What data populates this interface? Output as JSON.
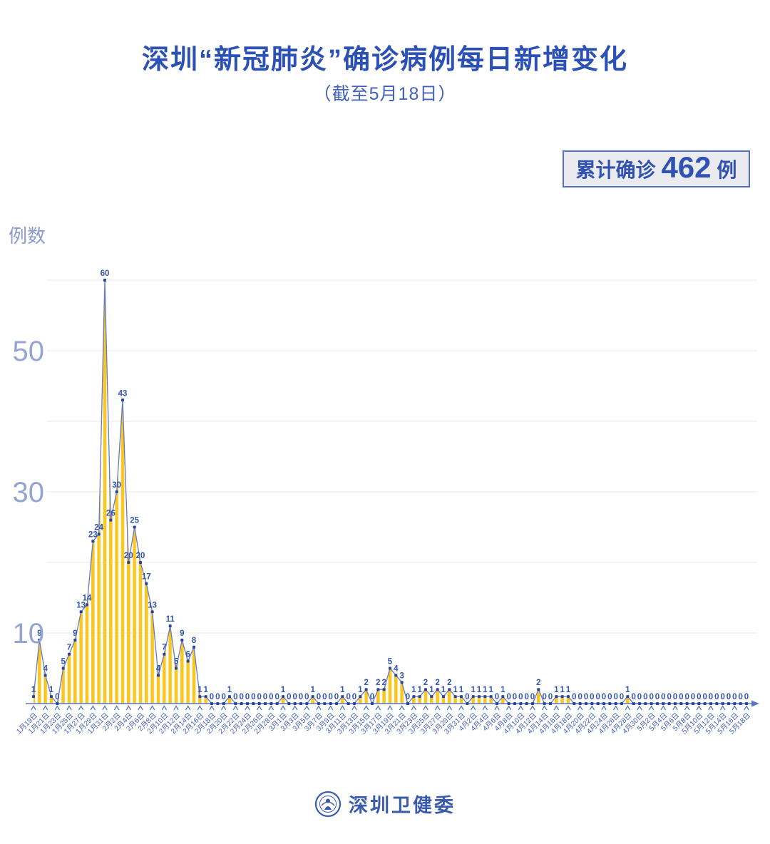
{
  "page": {
    "title": "深圳“新冠肺炎”确诊病例每日新增变化",
    "subtitle": "（截至5月18日）"
  },
  "badge": {
    "prefix": "累计确诊",
    "value": "462",
    "suffix": "例"
  },
  "footer": {
    "org_name": "深圳卫健委"
  },
  "chart_data": {
    "type": "area",
    "title": "深圳“新冠肺炎”确诊病例每日新增变化",
    "subtitle": "（截至5月18日）",
    "ylabel": "例数",
    "xlabel": "",
    "ylim": [
      0,
      60
    ],
    "yticks_labeled": [
      10,
      30,
      50
    ],
    "gridlines": [
      10,
      20,
      30,
      40,
      50,
      60
    ],
    "x_label_every": 2,
    "legend": "none",
    "grid": "on",
    "x": [
      "1月19日",
      "1月20日",
      "1月21日",
      "1月22日",
      "1月23日",
      "1月24日",
      "1月25日",
      "1月26日",
      "1月27日",
      "1月28日",
      "1月29日",
      "1月30日",
      "1月31日",
      "2月1日",
      "2月2日",
      "2月3日",
      "2月4日",
      "2月5日",
      "2月6日",
      "2月7日",
      "2月8日",
      "2月9日",
      "2月10日",
      "2月11日",
      "2月12日",
      "2月13日",
      "2月14日",
      "2月15日",
      "2月16日",
      "2月17日",
      "2月18日",
      "2月19日",
      "2月20日",
      "2月21日",
      "2月22日",
      "2月23日",
      "2月24日",
      "2月25日",
      "2月26日",
      "2月27日",
      "2月28日",
      "2月29日",
      "3月1日",
      "3月2日",
      "3月3日",
      "3月4日",
      "3月5日",
      "3月6日",
      "3月7日",
      "3月8日",
      "3月9日",
      "3月10日",
      "3月11日",
      "3月12日",
      "3月13日",
      "3月14日",
      "3月15日",
      "3月16日",
      "3月17日",
      "3月18日",
      "3月19日",
      "3月20日",
      "3月21日",
      "3月22日",
      "3月23日",
      "3月24日",
      "3月25日",
      "3月26日",
      "3月27日",
      "3月28日",
      "3月29日",
      "3月30日",
      "3月31日",
      "4月1日",
      "4月2日",
      "4月3日",
      "4月4日",
      "4月5日",
      "4月6日",
      "4月7日",
      "4月8日",
      "4月9日",
      "4月10日",
      "4月11日",
      "4月12日",
      "4月13日",
      "4月14日",
      "4月15日",
      "4月16日",
      "4月17日",
      "4月18日",
      "4月19日",
      "4月20日",
      "4月21日",
      "4月22日",
      "4月23日",
      "4月24日",
      "4月25日",
      "4月26日",
      "4月27日",
      "4月28日",
      "4月29日",
      "4月30日",
      "5月1日",
      "5月2日",
      "5月3日",
      "5月4日",
      "5月5日",
      "5月6日",
      "5月7日",
      "5月8日",
      "5月9日",
      "5月10日",
      "5月11日",
      "5月12日",
      "5月13日",
      "5月14日",
      "5月15日",
      "5月16日",
      "5月17日",
      "5月18日"
    ],
    "values": [
      1,
      9,
      4,
      1,
      0,
      5,
      7,
      9,
      13,
      14,
      23,
      24,
      60,
      26,
      30,
      43,
      20,
      25,
      20,
      17,
      13,
      4,
      7,
      11,
      5,
      9,
      6,
      8,
      1,
      1,
      0,
      0,
      0,
      1,
      0,
      0,
      0,
      0,
      0,
      0,
      0,
      0,
      1,
      0,
      0,
      0,
      0,
      1,
      0,
      0,
      0,
      0,
      1,
      0,
      0,
      1,
      2,
      0,
      2,
      2,
      5,
      4,
      3,
      0,
      1,
      1,
      2,
      1,
      2,
      1,
      2,
      1,
      1,
      0,
      1,
      1,
      1,
      1,
      0,
      1,
      0,
      0,
      0,
      0,
      0,
      2,
      0,
      0,
      1,
      1,
      1,
      0,
      0,
      0,
      0,
      0,
      0,
      0,
      0,
      0,
      1,
      0,
      0,
      0,
      0,
      0,
      0,
      0,
      0,
      0,
      0,
      0,
      0,
      0,
      0,
      0,
      0,
      0,
      0,
      0,
      0
    ],
    "total_matches_badge": 462,
    "colors": {
      "bar_fill": "#F9C71F",
      "line": "#6478C6",
      "dot": "#2A459D",
      "value_label": "#3155B1",
      "x_label": "#4363BB",
      "y_label": "#96A4D3",
      "ylabel_text": "#8C9BCD",
      "grid": "#E8E8E8",
      "axis": "#5C76C3"
    }
  }
}
